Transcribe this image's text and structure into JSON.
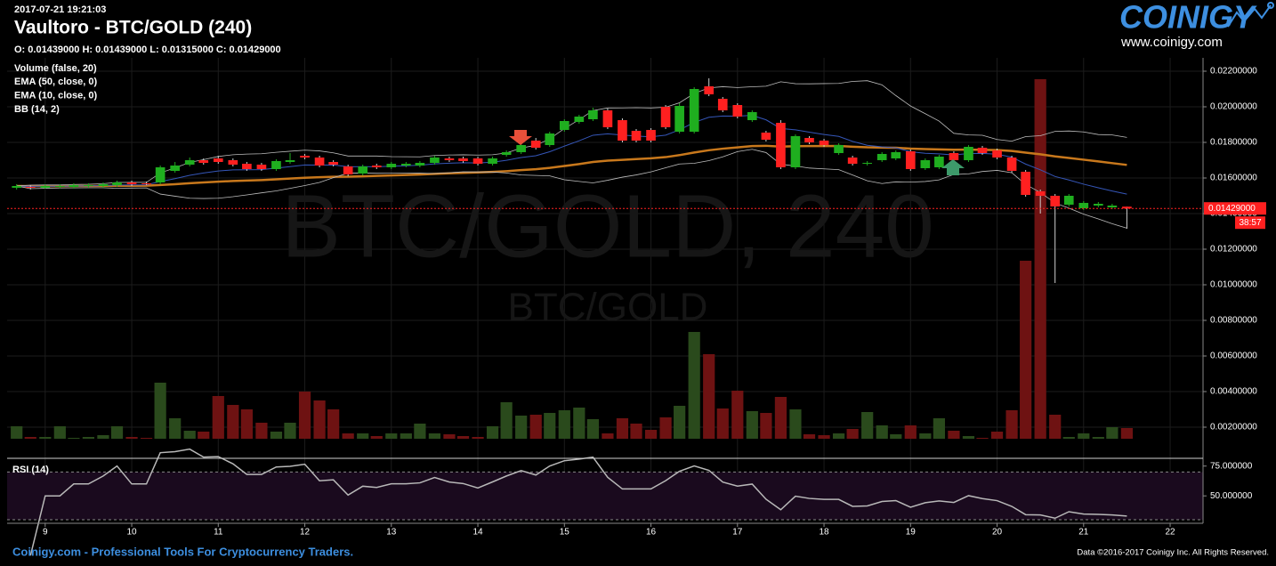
{
  "chart_data": {
    "type": "candlestick",
    "timestamp": "2017-07-21 19:21:03",
    "title": "Vaultoro - BTC/GOLD (240)",
    "ohlc_text": "O: 0.01439000 H: 0.01439000 L: 0.01315000 C: 0.01429000",
    "watermark": "BTC/GOLD, 240",
    "watermark_sub": "BTC/GOLD",
    "logo": "COINIGY",
    "logo_url": "www.coinigy.com",
    "footer_left": "Coinigy.com - Professional Tools For Cryptocurrency Traders.",
    "footer_right": "Data ©2016-2017 Coinigy Inc. All Rights Reserved.",
    "last_price_label": "0.01429000",
    "countdown": "38:57",
    "up_color": "#1fae1f",
    "down_color": "#ff2020",
    "up_volume_color": "#2a4a1c",
    "down_volume_color": "#6e1212",
    "grid": true,
    "x": [
      8.67,
      8.83,
      9,
      9.17,
      9.33,
      9.5,
      9.67,
      9.83,
      10,
      10.17,
      10.33,
      10.5,
      10.67,
      10.83,
      11,
      11.17,
      11.33,
      11.5,
      11.67,
      11.83,
      12,
      12.17,
      12.33,
      12.5,
      12.67,
      12.83,
      13,
      13.17,
      13.33,
      13.5,
      13.67,
      13.83,
      14,
      14.17,
      14.33,
      14.5,
      14.67,
      14.83,
      15,
      15.17,
      15.33,
      15.5,
      15.67,
      15.83,
      16,
      16.17,
      16.33,
      16.5,
      16.67,
      16.83,
      17,
      17.17,
      17.33,
      17.5,
      17.67,
      17.83,
      18,
      18.17,
      18.33,
      18.5,
      18.67,
      18.83,
      19,
      19.17,
      19.33,
      19.5,
      19.67,
      19.83,
      20,
      20.17,
      20.33,
      20.5,
      20.67,
      20.83,
      21,
      21.17,
      21.33,
      21.5
    ],
    "open": [
      0.01545,
      0.0155,
      0.01545,
      0.0155,
      0.0155,
      0.01555,
      0.01555,
      0.0156,
      0.01575,
      0.0157,
      0.01575,
      0.0164,
      0.01675,
      0.017,
      0.0171,
      0.017,
      0.0168,
      0.01675,
      0.0165,
      0.0169,
      0.01725,
      0.01715,
      0.0169,
      0.01665,
      0.01625,
      0.0167,
      0.0166,
      0.0167,
      0.0167,
      0.01685,
      0.0171,
      0.0171,
      0.0171,
      0.0168,
      0.0173,
      0.01745,
      0.0181,
      0.01785,
      0.0187,
      0.01915,
      0.0193,
      0.0198,
      0.01925,
      0.01865,
      0.0187,
      0.02,
      0.0186,
      0.0186,
      0.02115,
      0.02045,
      0.0201,
      0.01925,
      0.01855,
      0.0191,
      0.0166,
      0.01825,
      0.0181,
      0.0174,
      0.01715,
      0.0168,
      0.017,
      0.0171,
      0.0175,
      0.01655,
      0.0166,
      0.0174,
      0.017,
      0.0177,
      0.01755,
      0.01715,
      0.01635,
      0.01525,
      0.015,
      0.0145,
      0.0143,
      0.01445,
      0.01435,
      0.01439
    ],
    "high": [
      0.01565,
      0.0156,
      0.01565,
      0.01565,
      0.0157,
      0.0157,
      0.01575,
      0.01585,
      0.01585,
      0.0158,
      0.0167,
      0.0169,
      0.01715,
      0.0171,
      0.01725,
      0.0171,
      0.0169,
      0.01685,
      0.01705,
      0.0174,
      0.01735,
      0.01725,
      0.017,
      0.01675,
      0.01675,
      0.0168,
      0.0169,
      0.0169,
      0.01695,
      0.01725,
      0.0172,
      0.0172,
      0.0172,
      0.0172,
      0.01755,
      0.01795,
      0.01825,
      0.0186,
      0.0193,
      0.01955,
      0.01995,
      0.0199,
      0.01935,
      0.01875,
      0.0188,
      0.0201,
      0.0202,
      0.0211,
      0.0216,
      0.02055,
      0.0202,
      0.0198,
      0.01865,
      0.01925,
      0.01845,
      0.01835,
      0.0182,
      0.01795,
      0.01725,
      0.01695,
      0.01745,
      0.01755,
      0.0176,
      0.0171,
      0.0173,
      0.0175,
      0.01785,
      0.0178,
      0.01765,
      0.01725,
      0.01645,
      0.01535,
      0.0151,
      0.0151,
      0.0147,
      0.01465,
      0.01455,
      0.01439
    ],
    "low": [
      0.01535,
      0.01535,
      0.0154,
      0.0154,
      0.0154,
      0.01545,
      0.01545,
      0.0155,
      0.01555,
      0.0156,
      0.01565,
      0.0163,
      0.01665,
      0.01675,
      0.0168,
      0.01665,
      0.0164,
      0.0164,
      0.0164,
      0.0168,
      0.01705,
      0.0166,
      0.01665,
      0.0161,
      0.01615,
      0.0165,
      0.0165,
      0.0166,
      0.0166,
      0.01675,
      0.0169,
      0.01685,
      0.0167,
      0.0167,
      0.0172,
      0.01735,
      0.0176,
      0.01775,
      0.0186,
      0.01905,
      0.0192,
      0.01875,
      0.018,
      0.018,
      0.018,
      0.01875,
      0.0185,
      0.0185,
      0.0206,
      0.0197,
      0.01935,
      0.01915,
      0.01805,
      0.0165,
      0.0165,
      0.0179,
      0.01775,
      0.0173,
      0.0167,
      0.0167,
      0.0169,
      0.017,
      0.0164,
      0.01645,
      0.0165,
      0.0169,
      0.0169,
      0.0173,
      0.01705,
      0.0163,
      0.01495,
      0.014,
      0.0101,
      0.0144,
      0.0142,
      0.01435,
      0.01425,
      0.01315
    ],
    "close": [
      0.01555,
      0.01545,
      0.01555,
      0.01555,
      0.0156,
      0.0156,
      0.01565,
      0.01575,
      0.01565,
      0.01565,
      0.0166,
      0.0167,
      0.017,
      0.01685,
      0.0169,
      0.01675,
      0.0165,
      0.0165,
      0.01695,
      0.017,
      0.01715,
      0.0167,
      0.01675,
      0.0162,
      0.01665,
      0.0166,
      0.0168,
      0.0168,
      0.01685,
      0.01715,
      0.017,
      0.01695,
      0.0168,
      0.0171,
      0.01745,
      0.01785,
      0.0177,
      0.0185,
      0.0192,
      0.01945,
      0.0198,
      0.01885,
      0.0181,
      0.0181,
      0.0181,
      0.01885,
      0.02005,
      0.021,
      0.0207,
      0.0198,
      0.01945,
      0.0197,
      0.01815,
      0.0166,
      0.01835,
      0.018,
      0.01785,
      0.01785,
      0.0168,
      0.01685,
      0.01735,
      0.01745,
      0.0165,
      0.017,
      0.0172,
      0.017,
      0.01775,
      0.0174,
      0.01715,
      0.0164,
      0.01505,
      0.015,
      0.0144,
      0.015,
      0.0146,
      0.01455,
      0.01445,
      0.01429
    ],
    "volume": [
      14,
      2,
      2,
      14,
      1,
      2,
      4,
      14,
      2,
      1,
      63,
      23,
      9,
      8,
      48,
      38,
      33,
      18,
      8,
      18,
      53,
      43,
      33,
      6,
      6,
      3,
      6,
      6,
      17,
      6,
      5,
      3,
      2,
      14,
      41,
      26,
      27,
      29,
      32,
      35,
      22,
      6,
      23,
      17,
      10,
      24,
      37,
      120,
      95,
      34,
      54,
      31,
      29,
      47,
      33,
      5,
      4,
      6,
      11,
      30,
      15,
      5,
      15,
      6,
      23,
      9,
      3,
      1,
      8,
      32,
      200,
      404,
      27,
      2,
      6,
      2,
      13,
      12
    ],
    "xlim": [
      8.56,
      22.38
    ],
    "xticks": [
      9,
      10,
      11,
      12,
      13,
      14,
      15,
      16,
      17,
      18,
      19,
      20,
      21,
      22
    ],
    "ylim": [
      0.00135,
      0.02275
    ],
    "yticks": [
      {
        "value": 0.022,
        "label": "0.02200000"
      },
      {
        "value": 0.02,
        "label": "0.02000000"
      },
      {
        "value": 0.018,
        "label": "0.01800000"
      },
      {
        "value": 0.016,
        "label": "0.01600000"
      },
      {
        "value": 0.014,
        "label": "0.01400000"
      },
      {
        "value": 0.012,
        "label": "0.01200000"
      },
      {
        "value": 0.01,
        "label": "0.01000000"
      },
      {
        "value": 0.008,
        "label": "0.00800000"
      },
      {
        "value": 0.006,
        "label": "0.00600000"
      },
      {
        "value": 0.004,
        "label": "0.00400000"
      },
      {
        "value": 0.002,
        "label": "0.00200000"
      }
    ],
    "indicators": [
      {
        "kind": "volume",
        "label": "Volume (false, 20)"
      },
      {
        "kind": "ema",
        "label": "EMA (50, close, 0)",
        "period": 50,
        "color": "#c8781c"
      },
      {
        "kind": "ema",
        "label": "EMA (10, close, 0)",
        "period": 10,
        "color": "#3556b8"
      },
      {
        "kind": "bb",
        "label": "BB (14, 2)",
        "period": 14,
        "mult": 2,
        "color": "#bdbdbd"
      }
    ],
    "rsi": {
      "label": "RSI (14)",
      "period": 14,
      "color": "#b8b8b8",
      "ylim": [
        27,
        80
      ],
      "bands": [
        30,
        70
      ],
      "yticks": [
        {
          "value": 75,
          "label": "75.000000"
        },
        {
          "value": 50,
          "label": "50.000000"
        }
      ]
    }
  }
}
